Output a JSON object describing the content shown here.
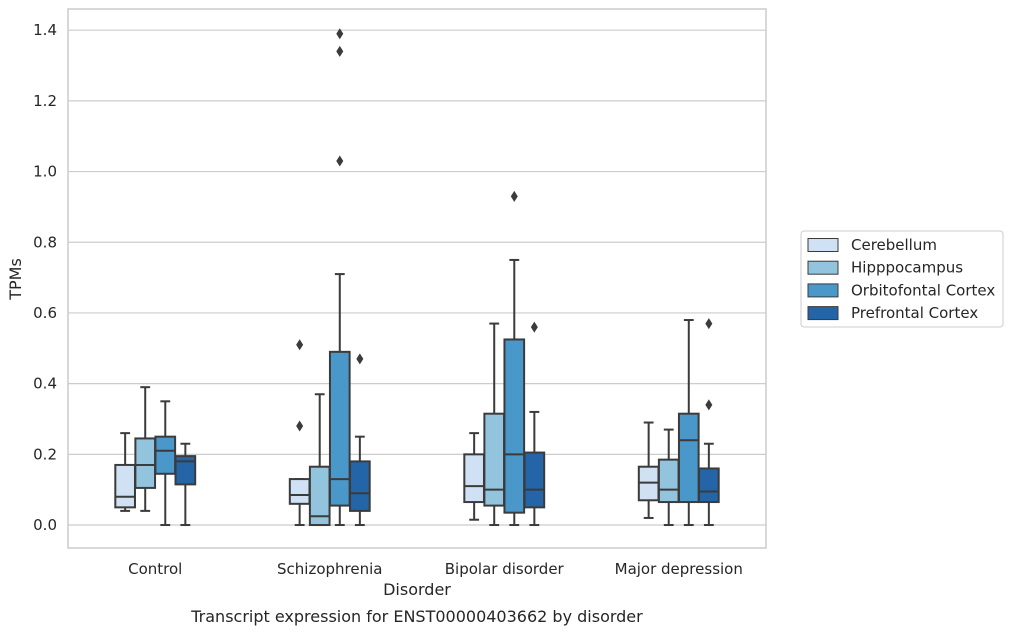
{
  "chart_data": {
    "type": "box",
    "title": "",
    "caption": "Transcript expression for ENST00000403662 by disorder",
    "xlabel": "Disorder",
    "ylabel": "TPMs",
    "ylim": [
      -0.065,
      1.46
    ],
    "yticks": [
      "0.0",
      "0.2",
      "0.4",
      "0.6",
      "0.8",
      "1.0",
      "1.2",
      "1.4"
    ],
    "grid": "horizontal",
    "legend_position": "right",
    "categories": [
      "Control",
      "Schizophrenia",
      "Bipolar disorder",
      "Major depression"
    ],
    "series": [
      {
        "name": "Cerebellum",
        "color": "#cfe1f2",
        "boxes": [
          {
            "whisker_low": 0.04,
            "q1": 0.05,
            "median": 0.08,
            "q3": 0.17,
            "whisker_high": 0.26,
            "outliers": []
          },
          {
            "whisker_low": 0.0,
            "q1": 0.06,
            "median": 0.085,
            "q3": 0.13,
            "whisker_high": 0.13,
            "outliers": [
              0.28,
              0.51
            ]
          },
          {
            "whisker_low": 0.015,
            "q1": 0.065,
            "median": 0.11,
            "q3": 0.2,
            "whisker_high": 0.26,
            "outliers": []
          },
          {
            "whisker_low": 0.02,
            "q1": 0.07,
            "median": 0.12,
            "q3": 0.165,
            "whisker_high": 0.29,
            "outliers": []
          }
        ]
      },
      {
        "name": "Hipppocampus",
        "color": "#93c4de",
        "boxes": [
          {
            "whisker_low": 0.04,
            "q1": 0.105,
            "median": 0.17,
            "q3": 0.245,
            "whisker_high": 0.39,
            "outliers": []
          },
          {
            "whisker_low": 0.0,
            "q1": 0.0,
            "median": 0.025,
            "q3": 0.165,
            "whisker_high": 0.37,
            "outliers": []
          },
          {
            "whisker_low": 0.0,
            "q1": 0.055,
            "median": 0.1,
            "q3": 0.315,
            "whisker_high": 0.57,
            "outliers": []
          },
          {
            "whisker_low": 0.0,
            "q1": 0.065,
            "median": 0.1,
            "q3": 0.185,
            "whisker_high": 0.27,
            "outliers": []
          }
        ]
      },
      {
        "name": "Orbitofontal Cortex",
        "color": "#4a98c9",
        "boxes": [
          {
            "whisker_low": 0.0,
            "q1": 0.145,
            "median": 0.21,
            "q3": 0.25,
            "whisker_high": 0.35,
            "outliers": []
          },
          {
            "whisker_low": 0.0,
            "q1": 0.055,
            "median": 0.13,
            "q3": 0.49,
            "whisker_high": 0.71,
            "outliers": [
              1.03,
              1.34,
              1.39
            ]
          },
          {
            "whisker_low": 0.0,
            "q1": 0.035,
            "median": 0.2,
            "q3": 0.525,
            "whisker_high": 0.75,
            "outliers": [
              0.93
            ]
          },
          {
            "whisker_low": 0.0,
            "q1": 0.065,
            "median": 0.24,
            "q3": 0.315,
            "whisker_high": 0.58,
            "outliers": []
          }
        ]
      },
      {
        "name": "Prefrontal Cortex",
        "color": "#2465a8",
        "boxes": [
          {
            "whisker_low": 0.0,
            "q1": 0.115,
            "median": 0.18,
            "q3": 0.195,
            "whisker_high": 0.23,
            "outliers": []
          },
          {
            "whisker_low": 0.0,
            "q1": 0.04,
            "median": 0.09,
            "q3": 0.18,
            "whisker_high": 0.25,
            "outliers": [
              0.47
            ]
          },
          {
            "whisker_low": 0.0,
            "q1": 0.05,
            "median": 0.1,
            "q3": 0.205,
            "whisker_high": 0.32,
            "outliers": [
              0.56
            ]
          },
          {
            "whisker_low": 0.0,
            "q1": 0.065,
            "median": 0.095,
            "q3": 0.16,
            "whisker_high": 0.23,
            "outliers": [
              0.34,
              0.57
            ]
          }
        ]
      }
    ]
  }
}
